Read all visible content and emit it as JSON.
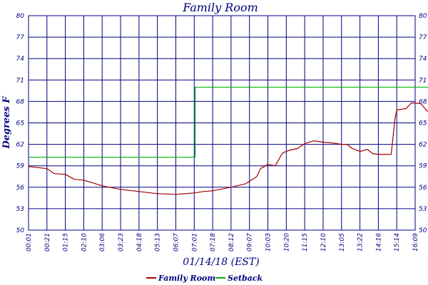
{
  "chart_data": {
    "type": "line",
    "title": "Family Room",
    "ylabel": "Degrees F",
    "xlabel": "01/14/18 (EST)",
    "ylim": [
      50,
      80
    ],
    "yticks": [
      "50",
      "53",
      "56",
      "59",
      "62",
      "65",
      "68",
      "71",
      "74",
      "77",
      "80"
    ],
    "ytick_values": [
      50,
      53,
      56,
      59,
      62,
      65,
      68,
      71,
      74,
      77,
      80
    ],
    "xticks": [
      "00:01",
      "00:21",
      "01:15",
      "02:10",
      "03:06",
      "03:23",
      "04:18",
      "05:13",
      "06:07",
      "07:01",
      "07:18",
      "08:12",
      "09:07",
      "10:03",
      "10:20",
      "11:15",
      "12:10",
      "13:05",
      "13:22",
      "14:16",
      "15:14",
      "16:09"
    ],
    "grid": true,
    "legend_placement": "bottom",
    "series": [
      {
        "name": "Family Room",
        "color": "#a00000",
        "values": [
          [
            0,
            58.9
          ],
          [
            1,
            58.6
          ],
          [
            1.4,
            57.9
          ],
          [
            2,
            57.8
          ],
          [
            2.5,
            57.1
          ],
          [
            3,
            57.0
          ],
          [
            3.5,
            56.6
          ],
          [
            4,
            56.2
          ],
          [
            5,
            55.7
          ],
          [
            6,
            55.4
          ],
          [
            7,
            55.1
          ],
          [
            8,
            55.0
          ],
          [
            9,
            55.2
          ],
          [
            9.5,
            55.4
          ],
          [
            10,
            55.5
          ],
          [
            11,
            56.0
          ],
          [
            11.8,
            56.5
          ],
          [
            12.4,
            57.5
          ],
          [
            12.6,
            58.6
          ],
          [
            13,
            59.2
          ],
          [
            13.4,
            59.0
          ],
          [
            13.8,
            60.8
          ],
          [
            14.2,
            61.2
          ],
          [
            14.6,
            61.4
          ],
          [
            15,
            62.1
          ],
          [
            15.5,
            62.5
          ],
          [
            16,
            62.3
          ],
          [
            16.5,
            62.2
          ],
          [
            17,
            62.0
          ],
          [
            17.3,
            62.0
          ],
          [
            17.6,
            61.4
          ],
          [
            18,
            61.0
          ],
          [
            18.4,
            61.3
          ],
          [
            18.7,
            60.7
          ],
          [
            19,
            60.6
          ],
          [
            19.7,
            60.6
          ],
          [
            19.9,
            65.5
          ],
          [
            20,
            66.8
          ],
          [
            20.5,
            67.0
          ],
          [
            20.8,
            67.8
          ],
          [
            21.3,
            67.7
          ],
          [
            21.6,
            66.8
          ],
          [
            21.8,
            66.4
          ]
        ]
      },
      {
        "name": "Setback",
        "color": "#00b000",
        "values": [
          [
            0,
            60.2
          ],
          [
            9.05,
            60.2
          ],
          [
            9.05,
            70.0
          ],
          [
            21.9,
            70.0
          ]
        ]
      }
    ]
  }
}
